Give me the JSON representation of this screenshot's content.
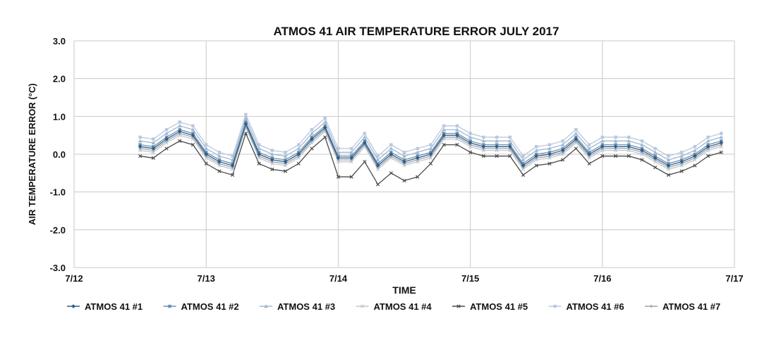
{
  "chart_data": {
    "type": "line",
    "title": "ATMOS 41 AIR TEMPERATURE ERROR JULY 2017",
    "xlabel": "TIME",
    "ylabel": "AIR TEMPERATURE ERROR (°C)",
    "xlim": [
      12,
      17
    ],
    "ylim": [
      -3,
      3
    ],
    "x_ticks": [
      12,
      13,
      14,
      15,
      16,
      17
    ],
    "x_tick_labels": [
      "7/12",
      "7/13",
      "7/14",
      "7/15",
      "7/16",
      "7/17"
    ],
    "y_ticks": [
      3,
      2,
      1,
      0,
      -1,
      -2,
      -3
    ],
    "y_tick_labels": [
      "3.0",
      "2.0",
      "1.0",
      "0.0",
      "-1.0",
      "-2.0",
      "-3.0"
    ],
    "grid": true,
    "legend_position": "bottom",
    "x": [
      12.5,
      12.6,
      12.7,
      12.8,
      12.9,
      13.0,
      13.1,
      13.2,
      13.3,
      13.4,
      13.5,
      13.6,
      13.7,
      13.8,
      13.9,
      14.0,
      14.1,
      14.2,
      14.3,
      14.4,
      14.5,
      14.6,
      14.7,
      14.8,
      14.9,
      15.0,
      15.1,
      15.2,
      15.3,
      15.4,
      15.5,
      15.6,
      15.7,
      15.8,
      15.9,
      16.0,
      16.1,
      16.2,
      16.3,
      16.4,
      16.5,
      16.6,
      16.7,
      16.8,
      16.9
    ],
    "series": [
      {
        "name": "ATMOS 41 #5",
        "color": "#4a4a4a",
        "marker": "x",
        "values": [
          -0.05,
          -0.1,
          0.15,
          0.35,
          0.25,
          -0.25,
          -0.45,
          -0.55,
          0.55,
          -0.25,
          -0.4,
          -0.45,
          -0.25,
          0.15,
          0.45,
          -0.6,
          -0.6,
          -0.2,
          -0.8,
          -0.5,
          -0.7,
          -0.6,
          -0.25,
          0.25,
          0.25,
          0.05,
          -0.05,
          -0.05,
          -0.05,
          -0.55,
          -0.3,
          -0.25,
          -0.15,
          0.15,
          -0.25,
          -0.05,
          -0.05,
          -0.05,
          -0.15,
          -0.35,
          -0.55,
          -0.45,
          -0.3,
          -0.05,
          0.05
        ]
      },
      {
        "name": "ATMOS 41 #4",
        "color": "#c3c9cf",
        "marker": "x",
        "values": [
          0.1,
          0.05,
          0.3,
          0.5,
          0.4,
          -0.1,
          -0.3,
          -0.4,
          0.7,
          -0.1,
          -0.25,
          -0.3,
          -0.1,
          0.3,
          0.6,
          -0.2,
          -0.2,
          0.2,
          -0.4,
          -0.1,
          -0.3,
          -0.2,
          -0.1,
          0.4,
          0.4,
          0.2,
          0.1,
          0.1,
          0.1,
          -0.4,
          -0.15,
          -0.1,
          0.0,
          0.3,
          -0.1,
          0.1,
          0.1,
          0.1,
          0.0,
          -0.2,
          -0.4,
          -0.3,
          -0.15,
          0.1,
          0.2
        ]
      },
      {
        "name": "ATMOS 41 #7",
        "color": "#9aa4ae",
        "marker": "plus",
        "values": [
          0.15,
          0.1,
          0.35,
          0.55,
          0.45,
          -0.05,
          -0.25,
          -0.35,
          0.75,
          -0.05,
          -0.2,
          -0.25,
          -0.05,
          0.35,
          0.65,
          -0.15,
          -0.15,
          0.25,
          -0.35,
          -0.05,
          -0.25,
          -0.15,
          -0.05,
          0.45,
          0.45,
          0.25,
          0.15,
          0.15,
          0.15,
          -0.35,
          -0.1,
          -0.05,
          0.05,
          0.35,
          -0.05,
          0.15,
          0.15,
          0.15,
          0.05,
          -0.15,
          -0.35,
          -0.25,
          -0.1,
          0.15,
          0.25
        ]
      },
      {
        "name": "ATMOS 41 #6",
        "color": "#b9c8de",
        "marker": "square",
        "values": [
          0.45,
          0.4,
          0.65,
          0.85,
          0.75,
          0.25,
          0.05,
          -0.05,
          1.05,
          0.25,
          0.1,
          0.05,
          0.25,
          0.65,
          0.95,
          0.15,
          0.15,
          0.55,
          -0.05,
          0.25,
          0.05,
          0.15,
          0.25,
          0.75,
          0.75,
          0.55,
          0.45,
          0.45,
          0.45,
          -0.05,
          0.2,
          0.25,
          0.35,
          0.65,
          0.25,
          0.45,
          0.45,
          0.45,
          0.35,
          0.15,
          -0.05,
          0.05,
          0.2,
          0.45,
          0.55
        ]
      },
      {
        "name": "ATMOS 41 #3",
        "color": "#9fb8d0",
        "marker": "triangle",
        "values": [
          0.35,
          0.3,
          0.55,
          0.75,
          0.65,
          0.15,
          -0.05,
          -0.15,
          0.95,
          0.15,
          0.0,
          -0.05,
          0.15,
          0.55,
          0.85,
          0.05,
          0.05,
          0.45,
          -0.15,
          0.15,
          -0.05,
          0.05,
          0.15,
          0.65,
          0.65,
          0.45,
          0.35,
          0.35,
          0.35,
          -0.15,
          0.1,
          0.15,
          0.25,
          0.55,
          0.15,
          0.35,
          0.35,
          0.35,
          0.25,
          0.05,
          -0.15,
          -0.05,
          0.1,
          0.35,
          0.45
        ]
      },
      {
        "name": "ATMOS 41 #2",
        "color": "#6f8fb0",
        "marker": "square",
        "values": [
          0.25,
          0.2,
          0.45,
          0.65,
          0.55,
          0.05,
          -0.15,
          -0.25,
          0.85,
          0.05,
          -0.1,
          -0.15,
          0.05,
          0.45,
          0.75,
          -0.05,
          -0.05,
          0.35,
          -0.25,
          0.05,
          -0.15,
          -0.05,
          0.05,
          0.55,
          0.55,
          0.35,
          0.25,
          0.25,
          0.25,
          -0.25,
          0.0,
          0.05,
          0.15,
          0.45,
          0.05,
          0.25,
          0.25,
          0.25,
          0.15,
          -0.05,
          -0.25,
          -0.15,
          0.0,
          0.25,
          0.35
        ]
      },
      {
        "name": "ATMOS 41 #1",
        "color": "#2e5f8a",
        "marker": "diamond",
        "values": [
          0.2,
          0.15,
          0.4,
          0.6,
          0.5,
          0.0,
          -0.2,
          -0.3,
          0.8,
          0.0,
          -0.15,
          -0.2,
          0.0,
          0.4,
          0.7,
          -0.1,
          -0.1,
          0.3,
          -0.3,
          0.0,
          -0.2,
          -0.1,
          0.0,
          0.5,
          0.5,
          0.3,
          0.2,
          0.2,
          0.2,
          -0.3,
          -0.05,
          0.0,
          0.1,
          0.4,
          0.0,
          0.2,
          0.2,
          0.2,
          0.1,
          -0.1,
          -0.3,
          -0.2,
          -0.05,
          0.2,
          0.3
        ]
      }
    ],
    "legend": [
      {
        "label": "ATMOS 41 #1",
        "color": "#2e5f8a",
        "marker": "diamond"
      },
      {
        "label": "ATMOS 41 #2",
        "color": "#6f8fb0",
        "marker": "square"
      },
      {
        "label": "ATMOS 41 #3",
        "color": "#9fb8d0",
        "marker": "triangle"
      },
      {
        "label": "ATMOS 41 #4",
        "color": "#c3c9cf",
        "marker": "x"
      },
      {
        "label": "ATMOS 41 #5",
        "color": "#4a4a4a",
        "marker": "x"
      },
      {
        "label": "ATMOS 41 #6",
        "color": "#b9c8de",
        "marker": "square"
      },
      {
        "label": "ATMOS 41 #7",
        "color": "#9aa4ae",
        "marker": "plus"
      }
    ]
  }
}
